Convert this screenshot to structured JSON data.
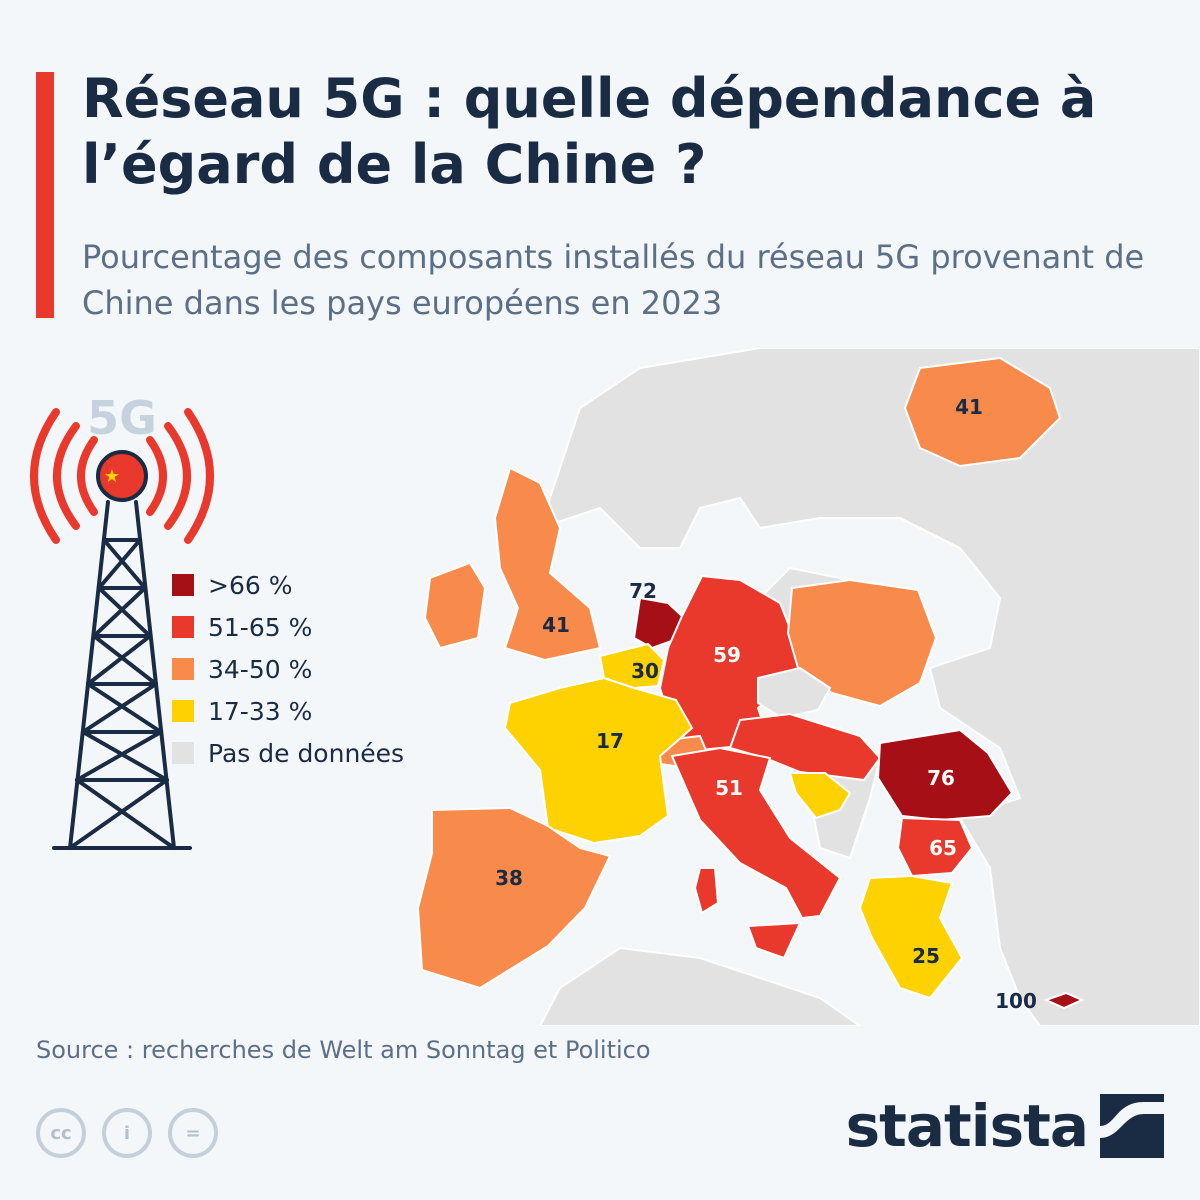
{
  "title": "Réseau 5G : quelle dépendance à l’égard de la Chine ?",
  "subtitle": "Pourcentage des composants installés du réseau 5G provenant de Chine dans les pays européens en 2023",
  "tower_label": "5G",
  "legend": [
    {
      "label": ">66 %",
      "color": "#a50f15"
    },
    {
      "label": "51-65 %",
      "color": "#e8392c"
    },
    {
      "label": "34-50 %",
      "color": "#f88a4b"
    },
    {
      "label": "17-33 %",
      "color": "#fed100"
    },
    {
      "label": "Pas de données",
      "color": "#e2e2e2"
    }
  ],
  "chart_data": {
    "type": "choropleth",
    "values": {
      "finland": 41,
      "uk": 41,
      "netherlands": 72,
      "belgium": 30,
      "germany": 59,
      "france": 17,
      "spain": 38,
      "italy": 51,
      "romania": 76,
      "bulgaria": 65,
      "greece": 25,
      "cyprus": 100
    }
  },
  "source": "Source : recherches de Welt am Sonntag et Politico",
  "cc_icons": [
    "cc",
    "i",
    "="
  ],
  "brand": "statista"
}
